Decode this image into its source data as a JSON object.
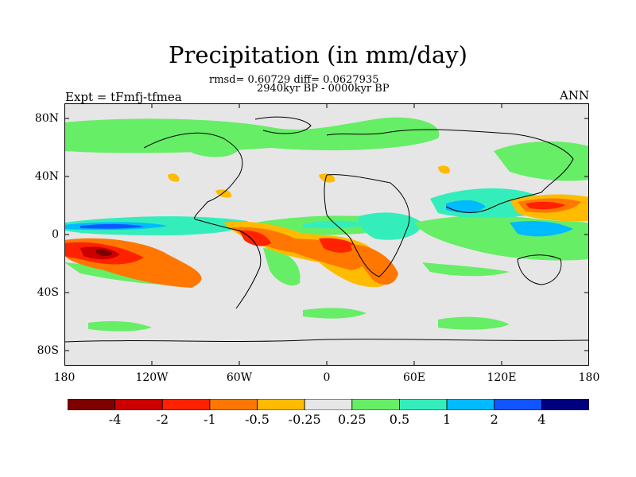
{
  "title": "Precipitation (in mm/day)",
  "stats_text": "rmsd= 0.60729 diff= 0.0627935",
  "period_text": "2940kyr BP - 0000kyr BP",
  "experiment_text": "Expt = tFmfj-tfmea",
  "season_text": "ANN",
  "map": {
    "background_color": "#e6e6e6",
    "lon_labels": [
      "180",
      "120W",
      "60W",
      "0",
      "60E",
      "120E",
      "180"
    ],
    "lat_labels": [
      "80N",
      "40N",
      "0",
      "40S",
      "80S"
    ]
  },
  "colorbar": {
    "colors": [
      "#7f0000",
      "#cc0000",
      "#ff2200",
      "#ff7700",
      "#ffbb00",
      "#e6e6e6",
      "#66ee66",
      "#33eebb",
      "#00bbff",
      "#1155ff",
      "#00007f"
    ],
    "labels": [
      "-4",
      "-2",
      "-1",
      "-0.5",
      "-0.25",
      "0.25",
      "0.5",
      "1",
      "2",
      "4"
    ]
  }
}
